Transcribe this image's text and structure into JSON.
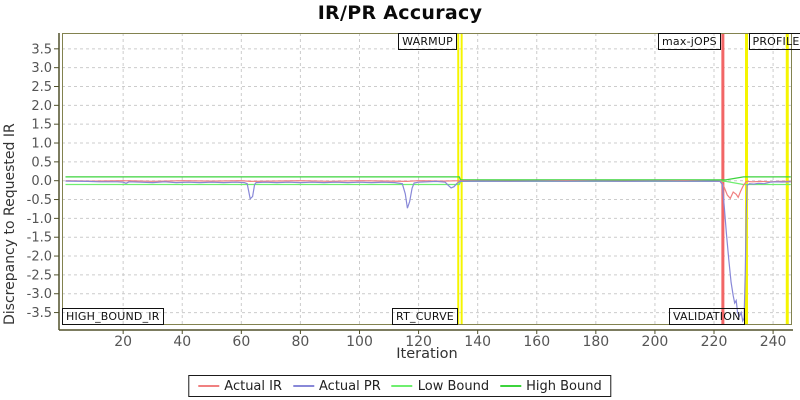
{
  "title": "IR/PR Accuracy",
  "chart_data": {
    "type": "line",
    "title": "IR/PR Accuracy",
    "xlabel": "Iteration",
    "ylabel": "Discrepancy to Requested IR",
    "xlim": [
      -0.7,
      246.4
    ],
    "ylim": [
      -3.83,
      3.92
    ],
    "x_ticks": [
      20,
      40,
      60,
      80,
      100,
      120,
      140,
      160,
      180,
      200,
      220,
      240
    ],
    "y_ticks": [
      3.5,
      3.0,
      2.5,
      2.0,
      1.5,
      1.0,
      0.5,
      0.0,
      -0.5,
      -1.0,
      -1.5,
      -2.0,
      -2.5,
      -3.0,
      -3.5
    ],
    "grid": "dashed",
    "grid_color": "#cccccc",
    "legend_position": "bottom-center",
    "series": [
      {
        "name": "Actual IR",
        "color": "#f08080",
        "points": [
          [
            0.5,
            0
          ],
          [
            10,
            -0.01
          ],
          [
            20,
            0
          ],
          [
            30,
            -0.015
          ],
          [
            40,
            0
          ],
          [
            50,
            -0.01
          ],
          [
            60,
            0
          ],
          [
            63,
            -0.02
          ],
          [
            70,
            -0.01
          ],
          [
            80,
            0
          ],
          [
            90,
            -0.015
          ],
          [
            100,
            0
          ],
          [
            110,
            -0.01
          ],
          [
            116,
            -0.02
          ],
          [
            120,
            0
          ],
          [
            128,
            -0.01
          ],
          [
            134,
            0
          ],
          [
            150,
            -0.01
          ],
          [
            170,
            0
          ],
          [
            190,
            -0.01
          ],
          [
            210,
            0
          ],
          [
            220,
            -0.01
          ],
          [
            222.5,
            -0.02
          ],
          [
            223.5,
            -0.18
          ],
          [
            224.5,
            -0.38
          ],
          [
            225.5,
            -0.47
          ],
          [
            226.5,
            -0.3
          ],
          [
            227.5,
            -0.36
          ],
          [
            228.2,
            -0.44
          ],
          [
            229,
            -0.28
          ],
          [
            230,
            -0.12
          ],
          [
            231,
            -0.02
          ],
          [
            233,
            -0.03
          ],
          [
            236,
            -0.02
          ],
          [
            239,
            -0.03
          ],
          [
            242,
            -0.02
          ],
          [
            246,
            -0.02
          ]
        ]
      },
      {
        "name": "Actual PR",
        "color": "#8888d8",
        "points": [
          [
            0.5,
            -0.01
          ],
          [
            8,
            -0.02
          ],
          [
            12,
            -0.03
          ],
          [
            18,
            -0.03
          ],
          [
            20,
            -0.04
          ],
          [
            21,
            -0.07
          ],
          [
            22,
            -0.03
          ],
          [
            26,
            -0.04
          ],
          [
            30,
            -0.05
          ],
          [
            34,
            -0.03
          ],
          [
            38,
            -0.05
          ],
          [
            42,
            -0.04
          ],
          [
            46,
            -0.05
          ],
          [
            50,
            -0.04
          ],
          [
            54,
            -0.05
          ],
          [
            58,
            -0.04
          ],
          [
            61,
            -0.05
          ],
          [
            62,
            -0.08
          ],
          [
            63,
            -0.48
          ],
          [
            63.8,
            -0.42
          ],
          [
            64.5,
            -0.1
          ],
          [
            65,
            -0.05
          ],
          [
            68,
            -0.04
          ],
          [
            72,
            -0.05
          ],
          [
            76,
            -0.04
          ],
          [
            80,
            -0.05
          ],
          [
            84,
            -0.04
          ],
          [
            88,
            -0.05
          ],
          [
            92,
            -0.04
          ],
          [
            96,
            -0.05
          ],
          [
            100,
            -0.04
          ],
          [
            104,
            -0.05
          ],
          [
            108,
            -0.04
          ],
          [
            112,
            -0.05
          ],
          [
            114.5,
            -0.08
          ],
          [
            115.5,
            -0.35
          ],
          [
            116.2,
            -0.73
          ],
          [
            117,
            -0.55
          ],
          [
            117.8,
            -0.2
          ],
          [
            118.5,
            -0.06
          ],
          [
            120,
            -0.04
          ],
          [
            123,
            -0.03
          ],
          [
            126,
            -0.02
          ],
          [
            129,
            -0.04
          ],
          [
            130,
            -0.12
          ],
          [
            131,
            -0.19
          ],
          [
            132,
            -0.16
          ],
          [
            133,
            -0.07
          ],
          [
            134,
            -0.02
          ],
          [
            140,
            -0.01
          ],
          [
            150,
            -0.015
          ],
          [
            160,
            -0.01
          ],
          [
            170,
            -0.015
          ],
          [
            180,
            -0.01
          ],
          [
            190,
            -0.015
          ],
          [
            200,
            -0.01
          ],
          [
            210,
            -0.015
          ],
          [
            218,
            -0.01
          ],
          [
            222,
            -0.015
          ],
          [
            222.8,
            -0.1
          ],
          [
            223.5,
            -0.7
          ],
          [
            224.2,
            -1.4
          ],
          [
            225,
            -2.1
          ],
          [
            225.8,
            -2.7
          ],
          [
            226.5,
            -3.05
          ],
          [
            227,
            -3.25
          ],
          [
            227.5,
            -3.18
          ],
          [
            228,
            -3.5
          ],
          [
            228.6,
            -3.6
          ],
          [
            229.2,
            -3.5
          ],
          [
            229.7,
            -3.72
          ],
          [
            230.2,
            -3.65
          ],
          [
            230.6,
            -2.4
          ],
          [
            230.9,
            -0.9
          ],
          [
            231.2,
            -0.12
          ],
          [
            232,
            -0.08
          ],
          [
            233.5,
            -0.09
          ],
          [
            235,
            -0.07
          ],
          [
            237,
            -0.08
          ],
          [
            239,
            -0.04
          ],
          [
            241,
            -0.03
          ],
          [
            243,
            -0.035
          ],
          [
            246,
            -0.03
          ]
        ]
      },
      {
        "name": "Low Bound",
        "color": "#6fef6f",
        "points": [
          [
            0.5,
            -0.1
          ],
          [
            133.8,
            -0.1
          ],
          [
            134.2,
            -0.02
          ],
          [
            224,
            -0.02
          ],
          [
            230,
            -0.1
          ],
          [
            246,
            -0.1
          ]
        ]
      },
      {
        "name": "High Bound",
        "color": "#3cd43c",
        "points": [
          [
            0.5,
            0.1
          ],
          [
            133.8,
            0.1
          ],
          [
            134.2,
            0.02
          ],
          [
            224,
            0.02
          ],
          [
            230,
            0.1
          ],
          [
            246,
            0.1
          ]
        ]
      }
    ],
    "vlines": [
      {
        "label": "WARMUP",
        "x": 134,
        "color": "#f5f500",
        "style": "double",
        "label_side": "left"
      },
      {
        "label": "max-jOPS",
        "x": 223,
        "color": "#f26666",
        "style": "single",
        "label_side": "left"
      },
      {
        "label": "PROFILE",
        "x": 231,
        "color": "#f5f500",
        "style": "single",
        "label_side": "right"
      },
      {
        "label": "",
        "x": 244.8,
        "color": "#f5f500",
        "style": "single",
        "label_side": "none"
      }
    ],
    "bottom_labels": [
      {
        "label": "HIGH_BOUND_IR",
        "x": 0,
        "anchor": "left"
      },
      {
        "label": "RT_CURVE",
        "x": 134,
        "anchor": "right"
      },
      {
        "label": "VALIDATION",
        "x": 231,
        "anchor": "right"
      }
    ]
  },
  "legend": {
    "items": [
      {
        "label": "Actual IR",
        "color": "#f08080"
      },
      {
        "label": "Actual PR",
        "color": "#8888d8"
      },
      {
        "label": "Low Bound",
        "color": "#6fef6f"
      },
      {
        "label": "High Bound",
        "color": "#3cd43c"
      }
    ]
  }
}
